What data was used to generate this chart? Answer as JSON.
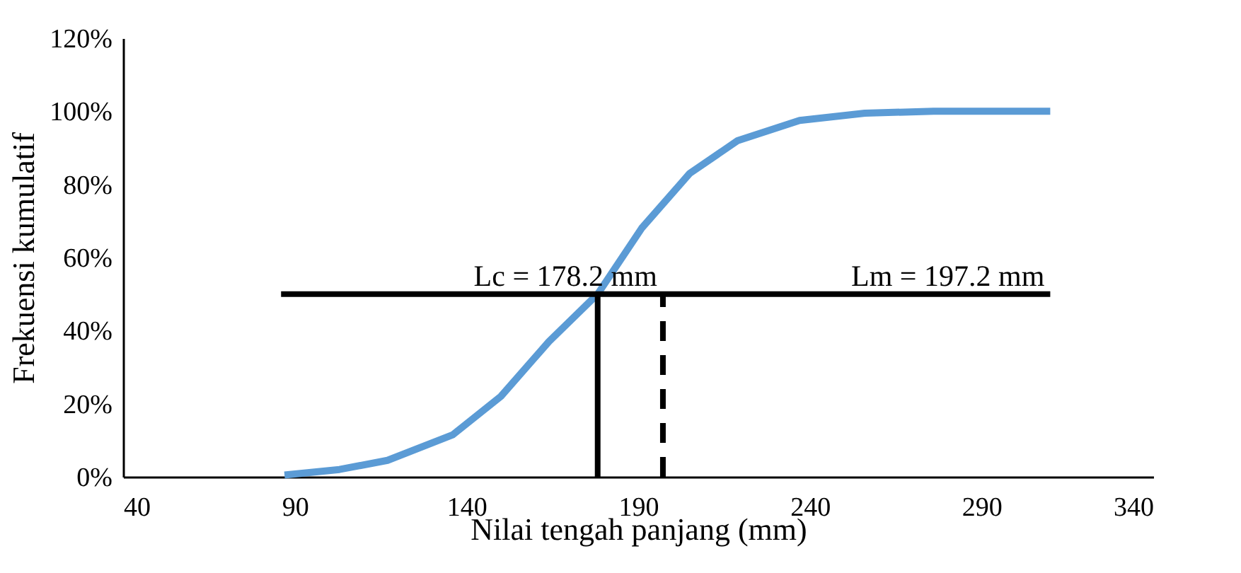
{
  "chart_data": {
    "type": "line",
    "xlabel": "Nilai tengah panjang (mm)",
    "ylabel": "Frekuensi kumulatif",
    "xlim": [
      40,
      340
    ],
    "xticks": [
      40,
      90,
      140,
      190,
      240,
      290,
      340
    ],
    "ylim": [
      0,
      120
    ],
    "yticks": [
      {
        "value": 0,
        "label": "0%"
      },
      {
        "value": 20,
        "label": "20%"
      },
      {
        "value": 40,
        "label": "40%"
      },
      {
        "value": 60,
        "label": "60%"
      },
      {
        "value": 80,
        "label": "80%"
      },
      {
        "value": 100,
        "label": "100%"
      },
      {
        "value": 120,
        "label": "120%"
      }
    ],
    "grid": false,
    "marker": "none",
    "series": [
      {
        "color": "#5b9bd5",
        "line_style": "solid",
        "x": [
          87,
          103,
          117,
          136,
          150,
          164,
          178.2,
          191,
          205,
          219,
          237,
          256,
          276,
          310
        ],
        "values": [
          0.5,
          2,
          4.5,
          11.5,
          22,
          37,
          50,
          68,
          83,
          92,
          97.5,
          99.5,
          100,
          100
        ]
      },
      {
        "color": "#000000",
        "line_style": "solid",
        "x": [
          86,
          310
        ],
        "values": [
          50,
          50
        ]
      },
      {
        "color": "#000000",
        "line_style": "solid",
        "x": [
          178.2,
          178.2
        ],
        "values": [
          0,
          50
        ]
      },
      {
        "color": "#000000",
        "line_style": "dashed",
        "x": [
          197.2,
          197.2
        ],
        "values": [
          0,
          50
        ]
      }
    ],
    "annotations": [
      {
        "text": "Lc = 178.2 mm",
        "x": 197.2,
        "y": 50
      },
      {
        "text": "Lm = 197.2 mm",
        "x": 310,
        "y": 50
      }
    ]
  }
}
